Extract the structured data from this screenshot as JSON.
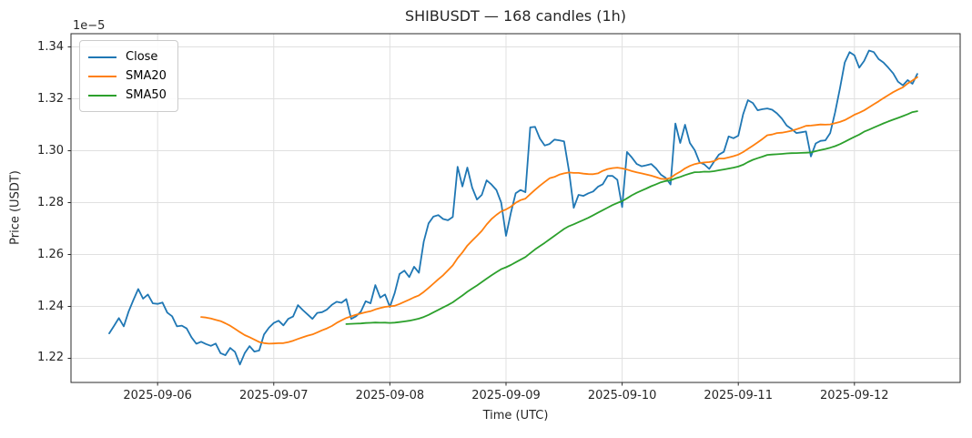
{
  "chart_data": {
    "type": "line",
    "title": "SHIBUSDT — 168 candles (1h)",
    "xlabel": "Time (UTC)",
    "ylabel": "Price (USDT)",
    "y_offset_label": "1e−5",
    "n_points": 168,
    "grid": true,
    "legend_position": "upper left",
    "y_ticks": [
      1.22,
      1.24,
      1.26,
      1.28,
      1.3,
      1.32,
      1.34
    ],
    "ylim": [
      1.2107,
      1.3451
    ],
    "x_tick_labels": [
      "2025-09-06",
      "2025-09-07",
      "2025-09-08",
      "2025-09-09",
      "2025-09-10",
      "2025-09-11",
      "2025-09-12"
    ],
    "x_tick_positions": [
      10,
      34,
      58,
      82,
      106,
      130,
      154
    ],
    "series": [
      {
        "name": "Close",
        "color": "#1f77b4",
        "values": [
          1.2296,
          1.2325,
          1.2355,
          1.2323,
          1.238,
          1.2425,
          1.2467,
          1.243,
          1.2446,
          1.2412,
          1.241,
          1.2415,
          1.2376,
          1.2362,
          1.2323,
          1.2326,
          1.2315,
          1.2281,
          1.2256,
          1.2264,
          1.2255,
          1.2248,
          1.2257,
          1.222,
          1.2212,
          1.224,
          1.2225,
          1.2176,
          1.222,
          1.2247,
          1.2226,
          1.223,
          1.2292,
          1.2318,
          1.2336,
          1.2345,
          1.2327,
          1.2352,
          1.2361,
          1.2405,
          1.2386,
          1.2369,
          1.2352,
          1.2375,
          1.2378,
          1.2388,
          1.2406,
          1.2418,
          1.2414,
          1.2428,
          1.2352,
          1.2362,
          1.238,
          1.242,
          1.2412,
          1.2482,
          1.2434,
          1.2446,
          1.2398,
          1.2452,
          1.2525,
          1.2538,
          1.2513,
          1.2553,
          1.253,
          1.265,
          1.272,
          1.2746,
          1.2752,
          1.2737,
          1.2732,
          1.2745,
          1.2938,
          1.2862,
          1.2935,
          1.2858,
          1.2812,
          1.283,
          1.2886,
          1.287,
          1.2849,
          1.28,
          1.2672,
          1.276,
          1.2836,
          1.2849,
          1.284,
          1.309,
          1.3092,
          1.3047,
          1.302,
          1.3026,
          1.3043,
          1.304,
          1.3036,
          1.2924,
          1.278,
          1.283,
          1.2826,
          1.2836,
          1.2843,
          1.2861,
          1.2871,
          1.2903,
          1.2903,
          1.2888,
          1.2783,
          1.2995,
          1.2974,
          1.2949,
          1.294,
          1.2944,
          1.2949,
          1.2932,
          1.2908,
          1.2895,
          1.287,
          1.3105,
          1.303,
          1.31,
          1.303,
          1.3002,
          1.2955,
          1.2947,
          1.293,
          1.2958,
          1.2985,
          1.2996,
          1.3055,
          1.3048,
          1.3058,
          1.314,
          1.3195,
          1.3184,
          1.3156,
          1.316,
          1.3163,
          1.3158,
          1.3144,
          1.3124,
          1.3097,
          1.3084,
          1.3068,
          1.3071,
          1.3074,
          1.2978,
          1.3028,
          1.3038,
          1.304,
          1.3068,
          1.3148,
          1.324,
          1.334,
          1.338,
          1.3368,
          1.332,
          1.3346,
          1.3386,
          1.338,
          1.3353,
          1.334,
          1.332,
          1.3298,
          1.3266,
          1.3252,
          1.3272,
          1.3258,
          1.3296
        ]
      },
      {
        "name": "SMA20",
        "color": "#ff7f0e",
        "window": 20
      },
      {
        "name": "SMA50",
        "color": "#2ca02c",
        "window": 50
      }
    ]
  }
}
